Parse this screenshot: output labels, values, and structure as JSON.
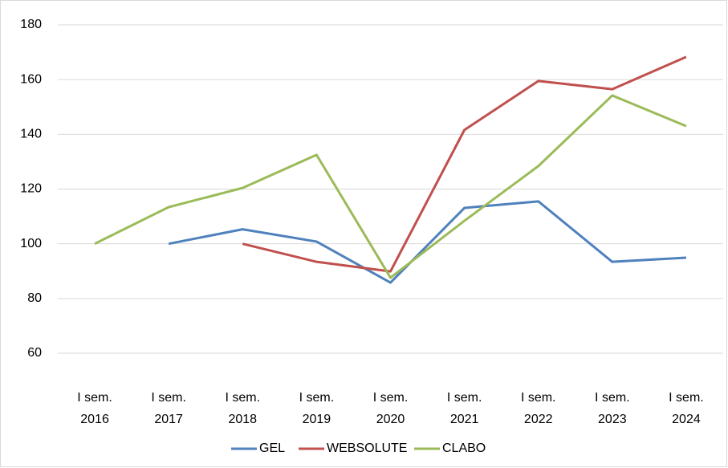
{
  "chart_data": {
    "type": "line",
    "categories": [
      "I sem. 2016",
      "I sem. 2017",
      "I sem. 2018",
      "I sem. 2019",
      "I sem. 2020",
      "I sem. 2021",
      "I sem. 2022",
      "I sem. 2023",
      "I sem. 2024"
    ],
    "series": [
      {
        "name": "GEL",
        "color": "#4f81bd",
        "values": [
          null,
          100,
          105.3,
          100.8,
          85.8,
          113.1,
          115.5,
          93.4,
          94.9
        ]
      },
      {
        "name": "WEBSOLUTE",
        "color": "#c0504d",
        "values": [
          null,
          null,
          100,
          93.4,
          89.9,
          141.6,
          159.5,
          156.5,
          168.3
        ]
      },
      {
        "name": "CLABO",
        "color": "#9bbb59",
        "values": [
          100,
          113.4,
          120.4,
          132.5,
          87.6,
          108.4,
          128.4,
          154.2,
          143.0
        ]
      }
    ],
    "ylim": [
      60,
      180
    ],
    "yticks": [
      60,
      80,
      100,
      120,
      140,
      160,
      180
    ],
    "grid": true,
    "legend": "bottom"
  }
}
